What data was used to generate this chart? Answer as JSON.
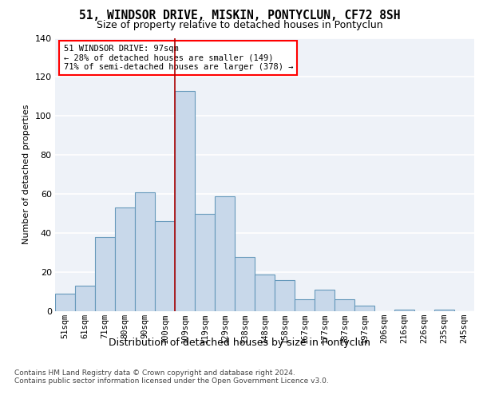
{
  "title1": "51, WINDSOR DRIVE, MISKIN, PONTYCLUN, CF72 8SH",
  "title2": "Size of property relative to detached houses in Pontyclun",
  "xlabel": "Distribution of detached houses by size in Pontyclun",
  "ylabel": "Number of detached properties",
  "categories": [
    "51sqm",
    "61sqm",
    "71sqm",
    "80sqm",
    "90sqm",
    "100sqm",
    "109sqm",
    "119sqm",
    "129sqm",
    "138sqm",
    "148sqm",
    "158sqm",
    "167sqm",
    "177sqm",
    "187sqm",
    "197sqm",
    "206sqm",
    "216sqm",
    "226sqm",
    "235sqm",
    "245sqm"
  ],
  "values": [
    9,
    13,
    38,
    53,
    61,
    46,
    113,
    50,
    59,
    28,
    19,
    16,
    6,
    11,
    6,
    3,
    0,
    1,
    0,
    1,
    0
  ],
  "bar_color": "#c8d8ea",
  "bar_edge_color": "#6699bb",
  "red_line_x": 5.5,
  "annotation_text": "51 WINDSOR DRIVE: 97sqm\n← 28% of detached houses are smaller (149)\n71% of semi-detached houses are larger (378) →",
  "ylim": [
    0,
    140
  ],
  "yticks": [
    0,
    20,
    40,
    60,
    80,
    100,
    120,
    140
  ],
  "bg_color": "#eef2f8",
  "grid_color": "#ffffff",
  "footer1": "Contains HM Land Registry data © Crown copyright and database right 2024.",
  "footer2": "Contains public sector information licensed under the Open Government Licence v3.0."
}
